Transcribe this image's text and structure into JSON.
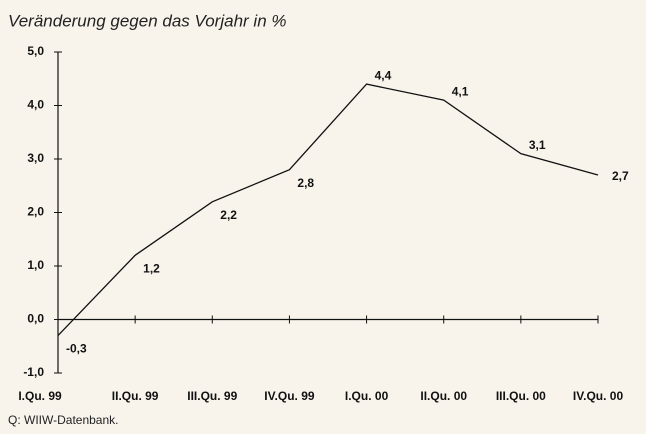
{
  "chart_data": {
    "type": "line",
    "title": "Veränderung gegen das Vorjahr in %",
    "categories": [
      "I.Qu. 99",
      "II.Qu. 99",
      "III.Qu. 99",
      "IV.Qu. 99",
      "I.Qu. 00",
      "II.Qu. 00",
      "III.Qu. 00",
      "IV.Qu. 00"
    ],
    "values": [
      -0.3,
      1.2,
      2.2,
      2.8,
      4.4,
      4.1,
      3.1,
      2.7
    ],
    "value_labels": [
      "-0,3",
      "1,2",
      "2,2",
      "2,8",
      "4,4",
      "4,1",
      "3,1",
      "2,7"
    ],
    "color": "#111111",
    "ylim": [
      -1,
      5
    ],
    "yticks": [
      {
        "value": -1,
        "label": "-1,0"
      },
      {
        "value": 0,
        "label": "0,0"
      },
      {
        "value": 1,
        "label": "1,0"
      },
      {
        "value": 2,
        "label": "2,0"
      },
      {
        "value": 3,
        "label": "3,0"
      },
      {
        "value": 4,
        "label": "4,0"
      },
      {
        "value": 5,
        "label": "5,0"
      }
    ],
    "source": "Q: WIIW-Datenbank."
  }
}
